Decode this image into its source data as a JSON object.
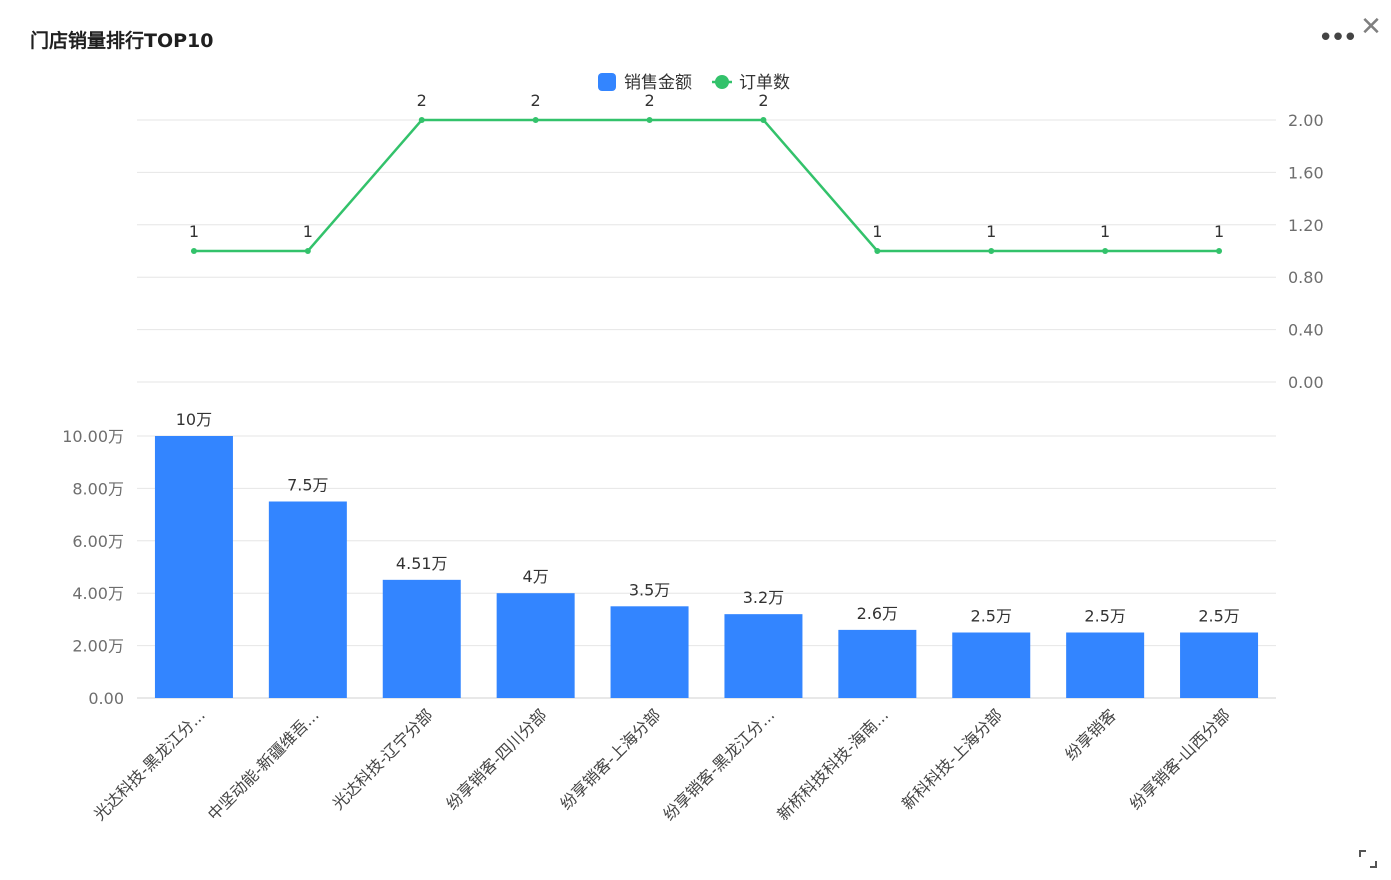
{
  "header": {
    "title": "门店销量排行TOP10",
    "more_icon": "more-horizontal-icon",
    "close_icon": "close-icon",
    "resize_icon": "resize-corner-icon"
  },
  "chart_data": {
    "type": "bar+line",
    "categories": [
      "光达科技-黑龙江分...",
      "中坚动能-新疆维吾...",
      "光达科技-辽宁分部",
      "纷享销客-四川分部",
      "纷享销客-上海分部",
      "纷享销客-黑龙江分...",
      "新桥科技科技-海南...",
      "新科科技-上海分部",
      "纷享销客",
      "纷享销客-山西分部"
    ],
    "legend": {
      "position": "top-center"
    },
    "series": [
      {
        "name": "销售金额",
        "type": "bar",
        "color": "#3385ff",
        "values": [
          100000,
          75000,
          45100,
          40000,
          35000,
          32000,
          26000,
          25000,
          25000,
          25000
        ],
        "labels": [
          "10万",
          "7.5万",
          "4.51万",
          "4万",
          "3.5万",
          "3.2万",
          "2.6万",
          "2.5万",
          "2.5万",
          "2.5万"
        ]
      },
      {
        "name": "订单数",
        "type": "line",
        "color": "#33c26b",
        "values": [
          1,
          1,
          2,
          2,
          2,
          2,
          1,
          1,
          1,
          1
        ],
        "labels": [
          "1",
          "1",
          "2",
          "2",
          "2",
          "2",
          "1",
          "1",
          "1",
          "1"
        ]
      }
    ],
    "bar_axis": {
      "ylim": [
        0,
        100000
      ],
      "ticks": [
        "0.00",
        "2.00万",
        "4.00万",
        "6.00万",
        "8.00万",
        "10.00万"
      ],
      "position": "left"
    },
    "line_axis": {
      "ylim": [
        0,
        2
      ],
      "ticks": [
        "0.00",
        "0.40",
        "0.80",
        "1.20",
        "1.60",
        "2.00"
      ],
      "position": "right"
    },
    "grid": true
  }
}
